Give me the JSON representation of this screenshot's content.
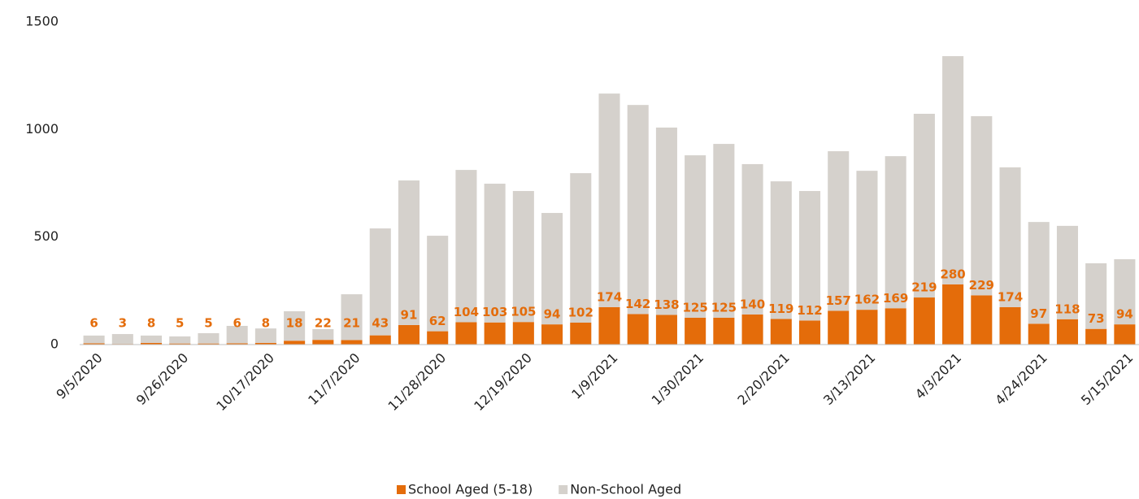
{
  "chart_data": {
    "type": "stacked_bar",
    "categories": [
      "9/5/2020",
      null,
      null,
      "9/26/2020",
      null,
      null,
      "10/17/2020",
      null,
      null,
      "11/7/2020",
      null,
      null,
      "11/28/2020",
      null,
      null,
      "12/19/2020",
      null,
      null,
      "1/9/2021",
      null,
      null,
      "1/30/2021",
      null,
      null,
      "2/20/2021",
      null,
      null,
      "3/13/2021",
      null,
      null,
      "4/3/2021",
      null,
      null,
      "4/24/2021",
      null,
      null,
      "5/15/2021"
    ],
    "series": [
      {
        "name": "School Aged (5-18)",
        "color": "#e46c0a",
        "data_labels": true,
        "values": [
          6,
          3,
          8,
          5,
          5,
          6,
          8,
          18,
          22,
          21,
          43,
          91,
          62,
          104,
          103,
          105,
          94,
          102,
          174,
          142,
          138,
          125,
          125,
          140,
          119,
          112,
          157,
          162,
          169,
          219,
          280,
          229,
          174,
          97,
          118,
          73,
          94
        ]
      },
      {
        "name": "Non-School Aged",
        "color": "#d5d1cc",
        "values": [
          36,
          46,
          34,
          33,
          48,
          81,
          67,
          137,
          50,
          213,
          497,
          672,
          444,
          708,
          645,
          609,
          518,
          695,
          993,
          972,
          871,
          755,
          808,
          699,
          640,
          602,
          742,
          646,
          707,
          854,
          1061,
          833,
          650,
          473,
          434,
          305,
          303
        ]
      }
    ],
    "ylim": [
      0,
      1500
    ],
    "yticks": [
      0,
      500,
      1000,
      1500
    ],
    "grid": false,
    "legend": "bottom"
  }
}
